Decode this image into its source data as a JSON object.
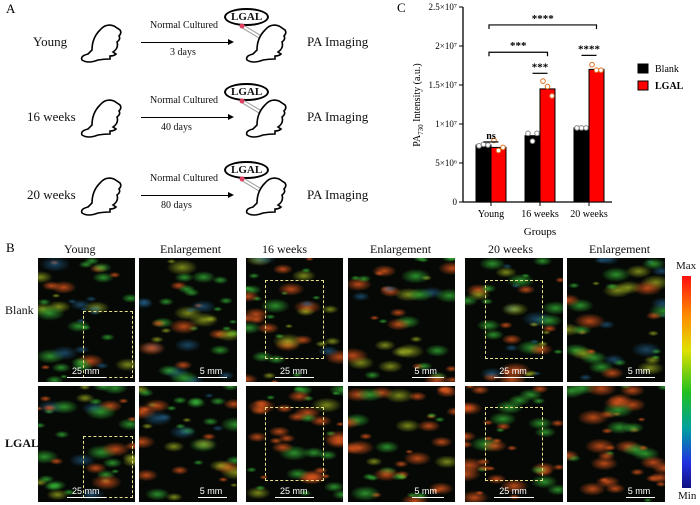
{
  "panel_a": {
    "label": "A",
    "rows": [
      {
        "group": "Young",
        "arrow_top": "Normal Cultured",
        "arrow_bottom": "3 days",
        "probe": "LGAL",
        "result": "PA Imaging"
      },
      {
        "group": "16 weeks",
        "arrow_top": "Normal Cultured",
        "arrow_bottom": "40 days",
        "probe": "LGAL",
        "result": "PA Imaging"
      },
      {
        "group": "20 weeks",
        "arrow_top": "Normal Cultured",
        "arrow_bottom": "80 days",
        "probe": "LGAL",
        "result": "PA Imaging"
      }
    ]
  },
  "panel_b": {
    "label": "B",
    "columns": [
      "Young",
      "Enlargement",
      "16 weeks",
      "Enlargement",
      "20 weeks",
      "Enlargement"
    ],
    "rows": [
      "Blank",
      "LGAL"
    ],
    "scale_bars": [
      "25 mm",
      "5 mm",
      "25 mm",
      "5 mm",
      "25 mm",
      "5 mm"
    ],
    "colorbar": {
      "max": "Max",
      "min": "Min"
    }
  },
  "chart_data": {
    "panel_label": "C",
    "type": "bar",
    "categories": [
      "Young",
      "16 weeks",
      "20 weeks"
    ],
    "xlabel": "Groups",
    "ylabel": "PA730 Intensity (a.u.)",
    "ylim": [
      0,
      25000000
    ],
    "yticks": [
      0,
      5000000,
      10000000,
      15000000,
      20000000,
      25000000
    ],
    "ytick_labels": [
      "0",
      "5×10⁶",
      "1×10⁷",
      "1.5×10⁷",
      "2×10⁷",
      "2.5×10⁷"
    ],
    "series": [
      {
        "name": "Blank",
        "color": "#000000",
        "values": [
          7300000,
          8500000,
          9500000
        ],
        "points": [
          [
            7200000,
            7400000,
            7300000
          ],
          [
            8800000,
            7800000,
            8800000
          ],
          [
            9500000,
            9500000,
            9500000
          ]
        ]
      },
      {
        "name": "LGAL",
        "color": "#ff0000",
        "values": [
          7000000,
          14500000,
          17000000
        ],
        "points": [
          [
            7900000,
            6600000,
            7000000
          ],
          [
            15500000,
            14800000,
            13600000
          ],
          [
            17600000,
            16900000,
            16900000
          ]
        ]
      }
    ],
    "legend": "right",
    "significance": [
      {
        "label": "ns",
        "from": [
          0,
          0
        ],
        "to": [
          0,
          1
        ],
        "y": 7700000
      },
      {
        "label": "***",
        "from": [
          1,
          0
        ],
        "to": [
          1,
          1
        ],
        "y": 16500000
      },
      {
        "label": "****",
        "from": [
          2,
          0
        ],
        "to": [
          2,
          1
        ],
        "y": 18800000
      },
      {
        "label": "***",
        "from": [
          0,
          0.5
        ],
        "to": [
          1,
          1
        ],
        "y": 19200000
      },
      {
        "label": "****",
        "from": [
          0,
          0.5
        ],
        "to": [
          2,
          1
        ],
        "y": 22700000
      }
    ]
  }
}
